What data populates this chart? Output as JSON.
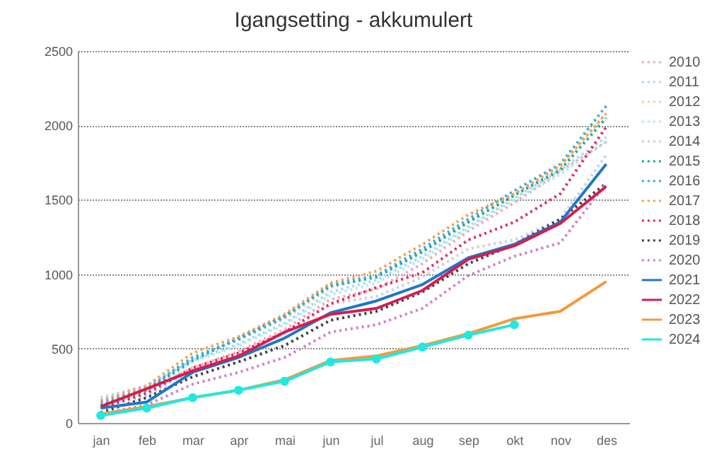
{
  "chart_data": {
    "type": "line",
    "title": "Igangsetting - akkumulert",
    "categories": [
      "jan",
      "feb",
      "mar",
      "apr",
      "mai",
      "jun",
      "jul",
      "aug",
      "sep",
      "okt",
      "nov",
      "des"
    ],
    "ylim": [
      0,
      2500
    ],
    "yticks": [
      0,
      500,
      1000,
      1500,
      2000,
      2500
    ],
    "grid": "y",
    "legend": "right",
    "series": [
      {
        "name": "2010",
        "color": "#f4a6b8",
        "line_style": "dotted",
        "values": [
          150,
          220,
          370,
          480,
          630,
          830,
          900,
          1070,
          1290,
          1480,
          1690,
          1890
        ]
      },
      {
        "name": "2011",
        "color": "#a9d8f0",
        "line_style": "dotted",
        "values": [
          170,
          250,
          420,
          530,
          670,
          880,
          960,
          1120,
          1320,
          1510,
          1700,
          1920
        ]
      },
      {
        "name": "2012",
        "color": "#f8cba0",
        "line_style": "dotted",
        "values": [
          140,
          220,
          440,
          560,
          700,
          910,
          990,
          1150,
          1350,
          1530,
          1720,
          2080
        ]
      },
      {
        "name": "2013",
        "color": "#a6f0f0",
        "line_style": "dotted",
        "values": [
          120,
          200,
          410,
          520,
          660,
          860,
          940,
          1100,
          1310,
          1500,
          1670,
          1890
        ]
      },
      {
        "name": "2014",
        "color": "#c8d0dc",
        "line_style": "dotted",
        "values": [
          110,
          180,
          360,
          470,
          600,
          800,
          850,
          980,
          1170,
          1230,
          1370,
          1800
        ]
      },
      {
        "name": "2015",
        "color": "#1fa89a",
        "line_style": "dotted",
        "values": [
          120,
          220,
          420,
          570,
          720,
          920,
          980,
          1150,
          1350,
          1530,
          1700,
          2050
        ]
      },
      {
        "name": "2016",
        "color": "#3aa8e8",
        "line_style": "dotted",
        "values": [
          140,
          230,
          440,
          560,
          710,
          930,
          990,
          1170,
          1370,
          1560,
          1740,
          2130
        ]
      },
      {
        "name": "2017",
        "color": "#f0a050",
        "line_style": "dotted",
        "values": [
          150,
          250,
          470,
          580,
          730,
          940,
          1020,
          1200,
          1400,
          1540,
          1730,
          2080
        ]
      },
      {
        "name": "2018",
        "color": "#d8305a",
        "line_style": "dotted",
        "values": [
          100,
          200,
          370,
          470,
          610,
          800,
          910,
          1010,
          1230,
          1350,
          1540,
          1990
        ]
      },
      {
        "name": "2019",
        "color": "#404040",
        "line_style": "dotted",
        "values": [
          70,
          170,
          310,
          410,
          520,
          690,
          750,
          880,
          1070,
          1200,
          1370,
          1610
        ]
      },
      {
        "name": "2020",
        "color": "#d080c8",
        "line_style": "dotted",
        "values": [
          60,
          120,
          260,
          340,
          440,
          610,
          660,
          770,
          990,
          1120,
          1210,
          1610
        ]
      },
      {
        "name": "2021",
        "color": "#1f77c8",
        "line_style": "solid",
        "values": [
          100,
          140,
          340,
          440,
          570,
          740,
          820,
          930,
          1110,
          1200,
          1350,
          1740
        ]
      },
      {
        "name": "2022",
        "color": "#d81b50",
        "line_style": "solid",
        "values": [
          110,
          230,
          350,
          450,
          610,
          730,
          770,
          890,
          1100,
          1190,
          1340,
          1590
        ]
      },
      {
        "name": "2023",
        "color": "#f59a3c",
        "line_style": "solid",
        "values": [
          60,
          110,
          170,
          220,
          290,
          420,
          450,
          520,
          600,
          700,
          750,
          950
        ]
      },
      {
        "name": "2024",
        "color": "#20e8e0",
        "line_style": "solid",
        "marker": "circle",
        "values": [
          50,
          100,
          170,
          220,
          280,
          410,
          430,
          510,
          590,
          660,
          null,
          null
        ]
      }
    ]
  }
}
